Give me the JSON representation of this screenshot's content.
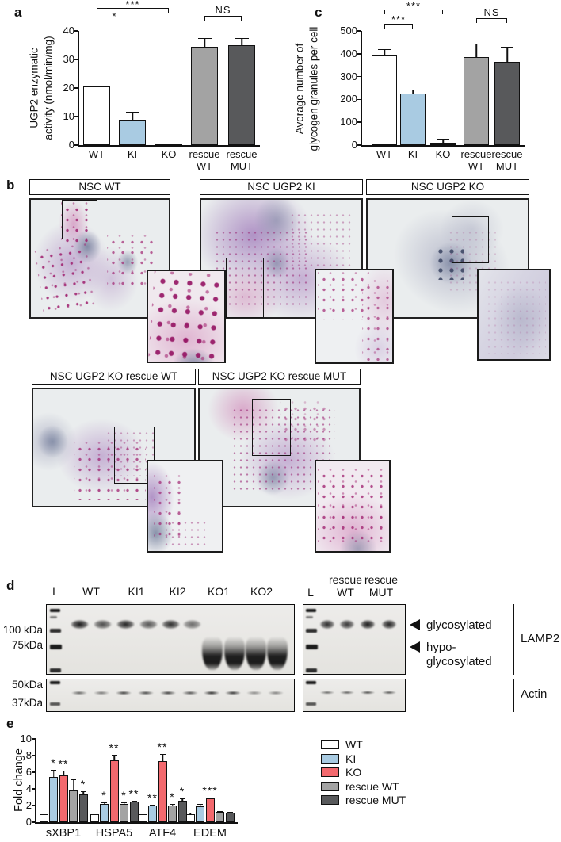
{
  "panels": {
    "a": "a",
    "b": "b",
    "c": "c",
    "d": "d",
    "e": "e"
  },
  "colors": {
    "wt": "#ffffff",
    "ki": "#a9cbe2",
    "ko": "#f3696e",
    "rescue_wt": "#a3a3a3",
    "rescue_mut": "#58595b",
    "outline": "#111111"
  },
  "chart_data": [
    {
      "id": "panel_a",
      "type": "bar",
      "ylabel": "UGP2 enzymatic\nactivity (nmol/min/mg)",
      "ylim": [
        0,
        40
      ],
      "yticks": [
        0,
        10,
        20,
        30,
        40
      ],
      "categories": [
        "WT",
        "KI",
        "KO",
        "rescue\nWT",
        "rescue\nMUT"
      ],
      "values": [
        20.5,
        9,
        0.3,
        34.5,
        35.1
      ],
      "errors": [
        0.4,
        2.6,
        0.3,
        2.9,
        2.5
      ],
      "bar_colors": [
        "wt",
        "ki",
        "ko",
        "rescue_wt",
        "rescue_mut"
      ],
      "significance": [
        {
          "from": 0,
          "to": 1,
          "label": "*"
        },
        {
          "from": 0,
          "to": 2,
          "label": "***"
        },
        {
          "from": 3,
          "to": 4,
          "label": "NS"
        }
      ]
    },
    {
      "id": "panel_c",
      "type": "bar",
      "ylabel": "Average number of\nglycogen granules per cell",
      "ylim": [
        0,
        500
      ],
      "yticks": [
        0,
        100,
        200,
        300,
        400,
        500
      ],
      "categories": [
        "WT",
        "KI",
        "KO",
        "rescue\nWT",
        "rescue\nMUT"
      ],
      "values": [
        392,
        225,
        11,
        386,
        363
      ],
      "errors": [
        27,
        17,
        17,
        60,
        66
      ],
      "bar_colors": [
        "wt",
        "ki",
        "ko",
        "rescue_wt",
        "rescue_mut"
      ],
      "significance": [
        {
          "from": 0,
          "to": 1,
          "label": "***"
        },
        {
          "from": 0,
          "to": 2,
          "label": "***"
        },
        {
          "from": 3,
          "to": 4,
          "label": "NS"
        }
      ]
    },
    {
      "id": "panel_e",
      "type": "grouped_bar",
      "ylabel": "Fold change",
      "ylim": [
        0,
        10
      ],
      "yticks": [
        0,
        2,
        4,
        6,
        8,
        10
      ],
      "categories": [
        "sXBP1",
        "HSPA5",
        "ATF4",
        "EDEM"
      ],
      "series": [
        {
          "name": "WT",
          "color": "wt",
          "values": [
            1.0,
            1.0,
            1.0,
            1.0
          ],
          "errors": [
            0.07,
            0.07,
            0.1,
            0.12
          ],
          "sig": [
            "",
            "",
            "",
            ""
          ]
        },
        {
          "name": "KI",
          "color": "ki",
          "values": [
            5.4,
            2.15,
            2.0,
            1.9
          ],
          "errors": [
            0.85,
            0.2,
            0.12,
            0.25
          ],
          "sig": [
            "*",
            "*",
            "**",
            ""
          ]
        },
        {
          "name": "KO",
          "color": "ko",
          "values": [
            5.65,
            7.4,
            7.3,
            2.9
          ],
          "errors": [
            0.55,
            0.65,
            0.85,
            0.1
          ],
          "sig": [
            "**",
            "**",
            "**",
            "***"
          ]
        },
        {
          "name": "rescue WT",
          "color": "rescue_wt",
          "values": [
            3.85,
            2.2,
            2.0,
            1.2
          ],
          "errors": [
            1.25,
            0.18,
            0.15,
            0.18
          ],
          "sig": [
            "",
            "*",
            "*",
            ""
          ]
        },
        {
          "name": "rescue MUT",
          "color": "rescue_mut",
          "values": [
            3.3,
            2.5,
            2.6,
            1.15
          ],
          "errors": [
            0.4,
            0.1,
            0.28,
            0.1
          ],
          "sig": [
            "*",
            "**",
            "*",
            ""
          ]
        }
      ],
      "legend": [
        "WT",
        "KI",
        "KO",
        "rescue WT",
        "rescue MUT"
      ],
      "legend_position": "right"
    }
  ],
  "panel_b": {
    "images": [
      {
        "label": "NSC  WT"
      },
      {
        "label": "NSC UGP2 KI"
      },
      {
        "label": "NSC UGP2 KO"
      },
      {
        "label": "NSC UGP2 KO rescue WT"
      },
      {
        "label": "NSC UGP2 KO rescue MUT"
      }
    ]
  },
  "panel_d": {
    "left_lane_labels": [
      "L",
      "WT",
      "KI1",
      "KI2",
      "KO1",
      "KO2"
    ],
    "right_lane_top_labels": [
      "rescue",
      "rescue"
    ],
    "right_lane_labels": [
      "L",
      "WT",
      "MUT"
    ],
    "mw_labels": [
      "100 kDa",
      "75kDa",
      "50kDa",
      "37kDa"
    ],
    "band_annotations": [
      "glycosylated",
      "hypo-",
      "glycosylated"
    ],
    "blot_labels": [
      "LAMP2",
      "Actin"
    ]
  }
}
